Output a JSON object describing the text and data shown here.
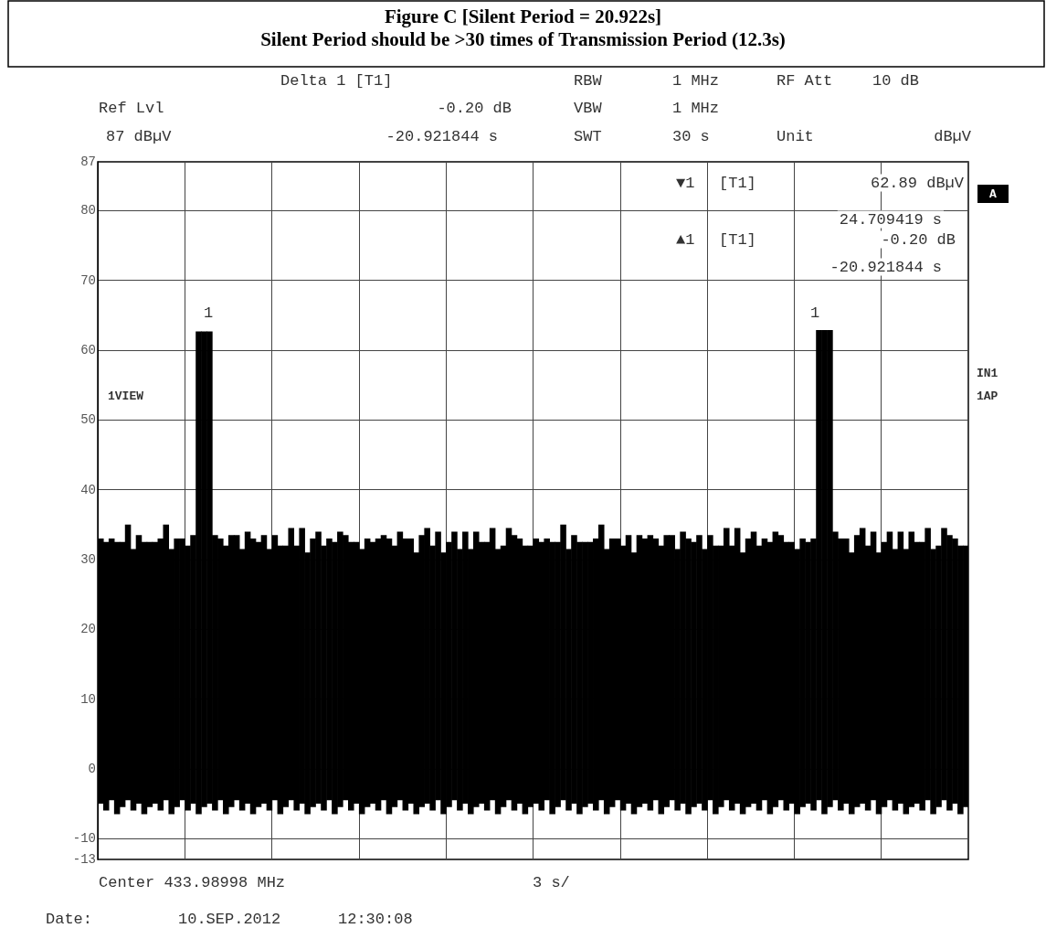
{
  "chart_data": {
    "type": "bar",
    "title": "Figure C [Silent Period = 20.922s]",
    "subtitle": "Silent Period should be >30 times of Transmission Period (12.3s)",
    "annotations": [
      "Delta 1 [T1]",
      "Ref Lvl",
      "-0.20 dB",
      "87 dBµV",
      "-20.921844 s",
      "RBW",
      "1 MHz",
      "RF Att",
      "10 dB",
      "VBW",
      "1 MHz",
      "SWT",
      "30 s",
      "Unit",
      "dBµV",
      "▼1",
      "[T1]",
      "62.89 dBµV",
      "24.709419 s",
      "▲1",
      "[T1]",
      "-0.20 dB",
      "-20.921844 s",
      "A",
      "1VIEW",
      "IN1",
      "1AP",
      "1",
      "1",
      "Center 433.98998 MHz",
      "3 s/",
      "Date:",
      "10.SEP.2012",
      "12:30:08"
    ],
    "categories": [
      null,
      null,
      null,
      null,
      null,
      null,
      null,
      null,
      null,
      null,
      null,
      null,
      null,
      null,
      null,
      null,
      null,
      null,
      null,
      null,
      null,
      null,
      null,
      null,
      null,
      null,
      null,
      null,
      null,
      null,
      null,
      null,
      null,
      null,
      null,
      null,
      null,
      null,
      null,
      null,
      null,
      null,
      null,
      null,
      null,
      null,
      null,
      null,
      null,
      null,
      null,
      null,
      null,
      null,
      null,
      null,
      null,
      null,
      null,
      null,
      null,
      null,
      null,
      null,
      null,
      null,
      null,
      null,
      null,
      null,
      null,
      null,
      null,
      null,
      null,
      null,
      null,
      null,
      null,
      null,
      null,
      null,
      null,
      null,
      null,
      null,
      null,
      null,
      null,
      null,
      null,
      null,
      null,
      null,
      null,
      null,
      null,
      null,
      null,
      null,
      null,
      null,
      null,
      null,
      null,
      null,
      null,
      null,
      null,
      null,
      null,
      null,
      null,
      null,
      null,
      null,
      null,
      null,
      null,
      null,
      null,
      null,
      null,
      null,
      null,
      null,
      null,
      null,
      null,
      null,
      null,
      null,
      null,
      null,
      null,
      null,
      null,
      null,
      null,
      null,
      null,
      null,
      null,
      null,
      null,
      null,
      null,
      null,
      null,
      null,
      null,
      null,
      null,
      null,
      null,
      null,
      null,
      null,
      null,
      null
    ],
    "values": [
      38,
      38.5,
      37.5,
      39,
      38,
      39.5,
      37.5,
      38.5,
      39,
      38,
      37.5,
      39,
      39.5,
      38,
      38.5,
      37.5,
      38,
      38.5,
      69.2,
      68.2,
      67.7,
      39.5,
      37.5,
      38.5,
      39,
      38,
      37.5,
      39,
      39.5,
      38,
      38.5,
      37.5,
      38,
      38.5,
      37.5,
      39,
      38,
      39.5,
      37.5,
      38.5,
      39,
      38,
      37.5,
      39,
      39.5,
      38,
      38.5,
      37.5,
      38,
      38.5,
      37.5,
      39,
      38,
      39.5,
      37.5,
      38.5,
      39,
      38,
      37.5,
      39,
      39.5,
      38,
      38.5,
      37.5,
      38,
      38.5,
      37.5,
      39,
      38,
      39.5,
      37.5,
      38.5,
      39,
      38,
      37.5,
      39,
      39.5,
      38,
      38.5,
      37.5,
      38,
      38.5,
      37.5,
      39,
      38,
      39.5,
      37.5,
      38.5,
      39,
      38,
      37.5,
      39,
      39.5,
      38,
      38.5,
      37.5,
      38,
      38.5,
      37.5,
      39,
      38,
      39.5,
      37.5,
      38.5,
      39,
      38,
      37.5,
      39,
      39.5,
      38,
      38.5,
      37.5,
      38,
      38.5,
      37.5,
      39,
      38,
      39.5,
      37.5,
      38.5,
      39,
      38,
      37.5,
      39,
      39.5,
      38,
      38.5,
      37.5,
      38,
      38.5,
      37.5,
      39,
      67.4,
      69.4,
      68.4,
      38.5,
      39,
      38,
      37.5,
      39,
      39.5,
      38,
      38.5,
      37.5,
      38,
      38.5,
      37.5,
      39,
      38,
      39.5,
      37.5,
      38.5,
      39,
      38,
      37.5,
      39,
      39.5,
      38,
      38.5,
      37.5
    ],
    "base": [
      -5,
      -6,
      -4.5,
      -6.5,
      -5.5,
      -4.5,
      -6,
      -5,
      -6.5,
      -5.5,
      -5,
      -6,
      -4.5,
      -6.5,
      -5.5,
      -4.5,
      -6,
      -5,
      -6.5,
      -5.5,
      -5,
      -6,
      -4.5,
      -6.5,
      -5.5,
      -4.5,
      -6,
      -5,
      -6.5,
      -5.5,
      -5,
      -6,
      -4.5,
      -6.5,
      -5.5,
      -4.5,
      -6,
      -5,
      -6.5,
      -5.5,
      -5,
      -6,
      -4.5,
      -6.5,
      -5.5,
      -4.5,
      -6,
      -5,
      -6.5,
      -5.5,
      -5,
      -6,
      -4.5,
      -6.5,
      -5.5,
      -4.5,
      -6,
      -5,
      -6.5,
      -5.5,
      -5,
      -6,
      -4.5,
      -6.5,
      -5.5,
      -4.5,
      -6,
      -5,
      -6.5,
      -5.5,
      -5,
      -6,
      -4.5,
      -6.5,
      -5.5,
      -4.5,
      -6,
      -5,
      -6.5,
      -5.5,
      -5,
      -6,
      -4.5,
      -6.5,
      -5.5,
      -4.5,
      -6,
      -5,
      -6.5,
      -5.5,
      -5,
      -6,
      -4.5,
      -6.5,
      -5.5,
      -4.5,
      -6,
      -5,
      -6.5,
      -5.5,
      -5,
      -6,
      -4.5,
      -6.5,
      -5.5,
      -4.5,
      -6,
      -5,
      -6.5,
      -5.5,
      -5,
      -6,
      -4.5,
      -6.5,
      -5.5,
      -4.5,
      -6,
      -5,
      -6.5,
      -5.5,
      -5,
      -6,
      -4.5,
      -6.5,
      -5.5,
      -4.5,
      -6,
      -5,
      -6.5,
      -5.5,
      -5,
      -6,
      -4.5,
      -6.5,
      -5.5,
      -4.5,
      -6,
      -5,
      -6.5,
      -5.5,
      -5,
      -6,
      -4.5,
      -6.5,
      -5.5,
      -4.5,
      -6,
      -5,
      -6.5,
      -5.5,
      -5,
      -6,
      -4.5,
      -6.5,
      -5.5,
      -4.5,
      -6,
      -5,
      -6.5,
      -5.5
    ],
    "color": "#000000",
    "ylim": [
      -13,
      87
    ],
    "yticks": [
      -13,
      -10,
      0,
      10,
      20,
      30,
      40,
      50,
      60,
      70,
      80,
      87
    ],
    "grid": true,
    "tick_labels": "y"
  }
}
